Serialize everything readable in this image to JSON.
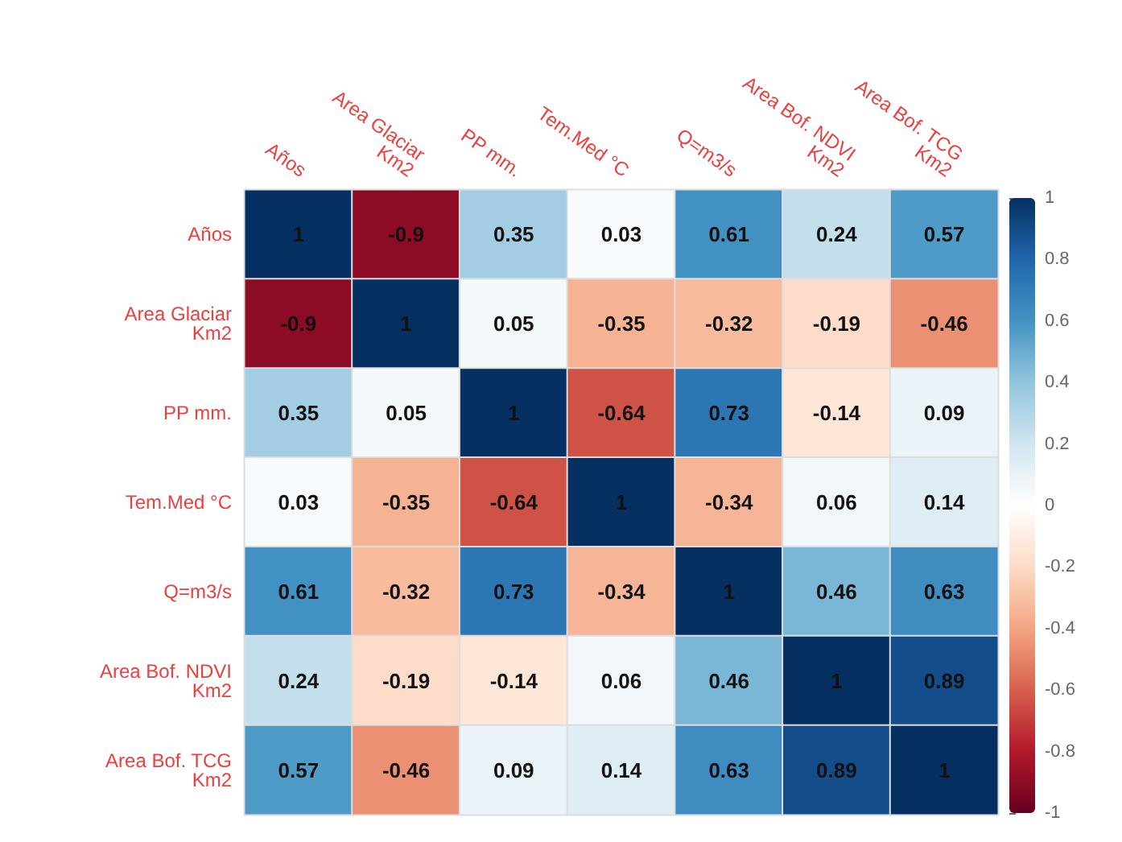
{
  "chart_data": {
    "type": "heatmap",
    "categories": [
      "Años",
      "Area Glaciar\nKm2",
      "PP mm.",
      "Tem.Med °C",
      "Q=m3/s",
      "Area Bof. NDVI\nKm2",
      "Area Bof. TCG\nKm2"
    ],
    "y_categories": [
      "Años",
      "Area Glaciar\nKm2",
      "PP mm.",
      "Tem.Med °C",
      "Q=m3/s",
      "Area Bof. NDVI\nKm2",
      "Area Bof. TCG\nKm2"
    ],
    "cells": [
      [
        1,
        -0.9,
        0.35,
        0.03,
        0.61,
        0.24,
        0.57
      ],
      [
        -0.9,
        1,
        0.05,
        -0.35,
        -0.32,
        -0.19,
        -0.46
      ],
      [
        0.35,
        0.05,
        1,
        -0.64,
        0.73,
        -0.14,
        0.09
      ],
      [
        0.03,
        -0.35,
        -0.64,
        1,
        -0.34,
        0.06,
        0.14
      ],
      [
        0.61,
        -0.32,
        0.73,
        -0.34,
        1,
        0.46,
        0.63
      ],
      [
        0.24,
        -0.19,
        -0.14,
        0.06,
        0.46,
        1,
        0.89
      ],
      [
        0.57,
        -0.46,
        0.09,
        0.14,
        0.63,
        0.89,
        1
      ]
    ],
    "clim": [
      -1,
      1
    ],
    "cticks": [
      -1,
      -0.8,
      -0.6,
      -0.4,
      -0.2,
      0,
      0.2,
      0.4,
      0.6,
      0.8,
      1
    ],
    "data_labels": true
  }
}
